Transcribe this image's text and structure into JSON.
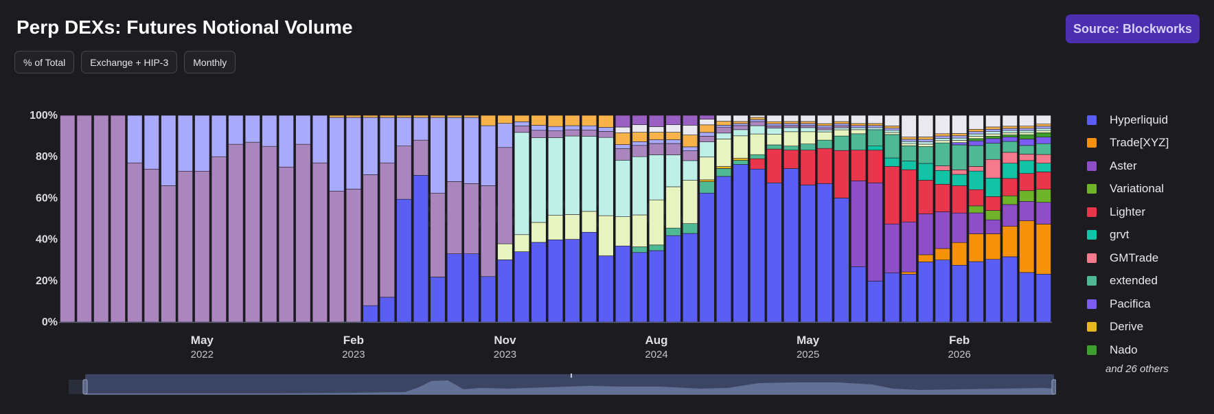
{
  "header": {
    "title": "Perp DEXs: Futures Notional Volume",
    "source_label": "Source: Blockworks"
  },
  "filters": {
    "mode": "% of Total",
    "scope": "Exchange + HIP-3",
    "period": "Monthly"
  },
  "watermark": "Blockworks",
  "legend": {
    "more_label": "and 26 others"
  },
  "chart_data": {
    "type": "bar",
    "stacked": true,
    "normalized": true,
    "title": "Perp DEXs: Futures Notional Volume",
    "y_unit": "% of total",
    "ylim": [
      0,
      100
    ],
    "y_ticks": [
      "0%",
      "20%",
      "40%",
      "60%",
      "80%",
      "100%"
    ],
    "grid": false,
    "legend_position": "right",
    "x_ticks": [
      {
        "month": "May",
        "year": "2022",
        "index": 8
      },
      {
        "month": "Feb",
        "year": "2023",
        "index": 17
      },
      {
        "month": "Nov",
        "year": "2023",
        "index": 26
      },
      {
        "month": "Aug",
        "year": "2024",
        "index": 35
      },
      {
        "month": "May",
        "year": "2025",
        "index": 44
      },
      {
        "month": "Feb",
        "year": "2026",
        "index": 53
      }
    ],
    "series": [
      {
        "name": "Hyperliquid",
        "color": "#5b5ef5",
        "values": [
          0,
          0,
          0,
          0,
          0,
          0,
          0,
          0,
          0,
          0,
          0,
          0,
          0,
          0,
          0,
          0,
          0,
          0,
          8,
          12,
          60,
          71,
          22,
          33,
          33,
          22,
          31,
          33,
          32,
          37,
          40,
          43,
          33,
          39,
          37,
          38,
          46,
          45,
          68,
          74,
          77,
          74,
          66,
          75,
          67,
          67,
          60,
          27,
          20,
          23,
          22,
          25,
          27,
          25,
          26,
          27,
          30,
          23,
          22
        ]
      },
      {
        "name": "Trade[XYZ]",
        "color": "#f5920a",
        "values": [
          0,
          0,
          0,
          0,
          0,
          0,
          0,
          0,
          0,
          0,
          0,
          0,
          0,
          0,
          0,
          0,
          0,
          0,
          0,
          0,
          0,
          0,
          0,
          0,
          0,
          0,
          0,
          0,
          0,
          0,
          0,
          0,
          0,
          0,
          0,
          0,
          0,
          0,
          0,
          0,
          0,
          0,
          0,
          0,
          0,
          0,
          0,
          0,
          0,
          0,
          1,
          3,
          5,
          10,
          12,
          11,
          14,
          24,
          23
        ]
      },
      {
        "name": "Aster",
        "color": "#8e4ec8",
        "values": [
          0,
          0,
          0,
          0,
          0,
          0,
          0,
          0,
          0,
          0,
          0,
          0,
          0,
          0,
          0,
          0,
          0,
          0,
          0,
          0,
          0,
          0,
          0,
          0,
          0,
          0,
          0,
          0,
          0,
          0,
          0,
          0,
          0,
          0,
          0,
          0,
          0,
          0,
          0,
          0,
          0,
          0,
          0,
          0,
          0,
          0,
          0,
          42,
          48,
          23,
          23,
          17,
          16,
          13,
          9,
          6,
          10,
          9,
          10
        ]
      },
      {
        "name": "Variational",
        "color": "#6fb32a",
        "values": [
          0,
          0,
          0,
          0,
          0,
          0,
          0,
          0,
          0,
          0,
          0,
          0,
          0,
          0,
          0,
          0,
          0,
          0,
          0,
          0,
          0,
          0,
          0,
          0,
          0,
          0,
          0,
          0,
          0,
          0,
          0,
          0,
          0,
          0,
          0,
          0,
          0,
          0,
          0,
          0,
          0,
          0,
          0,
          0,
          0,
          0,
          0,
          0,
          0,
          0,
          0,
          0,
          0,
          0,
          3,
          4,
          4,
          5,
          6
        ]
      },
      {
        "name": "Lighter",
        "color": "#e8364c",
        "values": [
          0,
          0,
          0,
          0,
          0,
          0,
          0,
          0,
          0,
          0,
          0,
          0,
          0,
          0,
          0,
          0,
          0,
          0,
          0,
          0,
          0,
          0,
          0,
          0,
          0,
          0,
          0,
          0,
          0,
          0,
          0,
          0,
          0,
          0,
          0,
          0,
          0,
          0,
          0,
          0,
          0,
          5,
          16,
          9,
          17,
          17,
          23,
          15,
          16,
          27,
          24,
          14,
          12,
          12,
          7,
          6,
          8,
          8,
          8
        ]
      },
      {
        "name": "grvt",
        "color": "#12c3a6",
        "values": [
          0,
          0,
          0,
          0,
          0,
          0,
          0,
          0,
          0,
          0,
          0,
          0,
          0,
          0,
          0,
          0,
          0,
          0,
          0,
          0,
          0,
          0,
          0,
          0,
          0,
          0,
          0,
          0,
          0,
          0,
          0,
          0,
          0,
          0,
          0,
          0,
          0,
          0,
          0,
          0,
          0,
          0,
          0,
          0,
          0,
          0,
          0,
          0,
          2,
          4,
          4,
          7,
          6,
          5,
          8,
          8,
          7,
          6,
          4
        ]
      },
      {
        "name": "GMTrade",
        "color": "#f47a8c",
        "values": [
          0,
          0,
          0,
          0,
          0,
          0,
          0,
          0,
          0,
          0,
          0,
          0,
          0,
          0,
          0,
          0,
          0,
          0,
          0,
          0,
          0,
          0,
          0,
          0,
          0,
          0,
          0,
          0,
          0,
          0,
          0,
          0,
          0,
          0,
          0,
          0,
          0,
          0,
          0,
          0,
          0,
          0,
          0,
          0,
          0,
          0,
          0,
          0,
          0,
          0,
          0,
          0,
          2,
          2,
          2,
          8,
          5,
          3,
          4
        ]
      },
      {
        "name": "extended",
        "color": "#4fb894",
        "values": [
          0,
          0,
          0,
          0,
          0,
          0,
          0,
          0,
          0,
          0,
          0,
          0,
          0,
          0,
          0,
          0,
          0,
          0,
          0,
          0,
          0,
          0,
          0,
          0,
          0,
          0,
          0,
          0,
          0,
          0,
          0,
          0,
          0,
          0,
          3,
          3,
          4,
          5,
          6,
          4,
          2,
          2,
          2,
          2,
          3,
          4,
          7,
          8,
          8,
          11,
          7,
          7,
          10,
          11,
          9,
          7,
          5,
          4,
          5
        ]
      },
      {
        "name": "Pacifica",
        "color": "#7b5cf0",
        "values": [
          0,
          0,
          0,
          0,
          0,
          0,
          0,
          0,
          0,
          0,
          0,
          0,
          0,
          0,
          0,
          0,
          0,
          0,
          0,
          0,
          0,
          0,
          0,
          0,
          0,
          0,
          0,
          0,
          0,
          0,
          0,
          0,
          0,
          0,
          0,
          0,
          0,
          0,
          0,
          0,
          0,
          0,
          0,
          0,
          0,
          0,
          0,
          0,
          0,
          0,
          0,
          0,
          0,
          1,
          2,
          2,
          2,
          3,
          3
        ]
      },
      {
        "name": "Derive",
        "color": "#e6b820",
        "values": [
          0,
          0,
          0,
          0,
          0,
          0,
          0,
          0,
          0,
          0,
          0,
          0,
          0,
          0,
          0,
          0,
          0,
          0,
          0,
          0,
          0,
          0,
          0,
          0,
          0,
          0,
          0,
          0,
          0,
          0,
          0,
          0,
          0,
          0,
          0,
          0,
          0,
          0,
          1,
          1,
          1,
          0,
          0,
          0,
          0,
          0,
          0,
          0,
          0,
          0,
          0,
          0,
          0,
          0,
          0,
          0,
          0,
          0,
          0
        ]
      },
      {
        "name": "Nado",
        "color": "#3d9e2e",
        "values": [
          0,
          0,
          0,
          0,
          0,
          0,
          0,
          0,
          0,
          0,
          0,
          0,
          0,
          0,
          0,
          0,
          0,
          0,
          0,
          0,
          0,
          0,
          0,
          0,
          0,
          0,
          0,
          0,
          0,
          0,
          0,
          0,
          0,
          0,
          0,
          0,
          0,
          0,
          0,
          0,
          0,
          0,
          0,
          0,
          0,
          0,
          0,
          0,
          0,
          0,
          0,
          0,
          0,
          0,
          1,
          1,
          1,
          2,
          2
        ]
      },
      {
        "name": "",
        "color": "#e8f4bf",
        "values": [
          0,
          0,
          0,
          0,
          0,
          0,
          0,
          0,
          0,
          0,
          0,
          0,
          0,
          0,
          0,
          0,
          0,
          0,
          0,
          0,
          0,
          0,
          0,
          0,
          0,
          0,
          8,
          8,
          8,
          11,
          12,
          10,
          20,
          15,
          17,
          24,
          22,
          22,
          12,
          14,
          11,
          10,
          5,
          7,
          6,
          4,
          3,
          2,
          0,
          1,
          1,
          1,
          1,
          1,
          1,
          1,
          1,
          1,
          1
        ]
      },
      {
        "name": "",
        "color": "#bff0e8",
        "values": [
          0,
          0,
          0,
          0,
          0,
          0,
          0,
          0,
          0,
          0,
          0,
          0,
          0,
          0,
          0,
          0,
          0,
          0,
          0,
          0,
          0,
          0,
          0,
          0,
          0,
          0,
          0,
          48,
          34,
          35,
          38,
          36,
          39,
          29,
          31,
          24,
          17,
          10,
          8,
          3,
          3,
          4,
          3,
          2,
          2,
          1,
          1,
          1,
          1,
          1,
          1,
          1,
          1,
          1,
          1,
          1,
          1,
          1,
          1
        ]
      },
      {
        "name": "",
        "color": "#ab85bd",
        "values": [
          100,
          100,
          100,
          100,
          77,
          74,
          66,
          73,
          73,
          80,
          86,
          87,
          85,
          75,
          86,
          77,
          64,
          65,
          64,
          65,
          26,
          17,
          41,
          35,
          34,
          44,
          48,
          3,
          3,
          3,
          3,
          3,
          3,
          6,
          6,
          6,
          6,
          5,
          3,
          3,
          2,
          2,
          1,
          1,
          1,
          1,
          1,
          0,
          0,
          0,
          0,
          0,
          0,
          0,
          0,
          0,
          0,
          0,
          0
        ]
      },
      {
        "name": "",
        "color": "#a9aafc",
        "values": [
          0,
          0,
          0,
          0,
          23,
          26,
          34,
          27,
          27,
          20,
          14,
          13,
          15,
          25,
          14,
          23,
          36,
          35,
          28,
          22,
          14,
          11,
          37,
          31,
          32,
          29,
          12,
          2,
          2,
          2,
          2,
          2,
          2,
          2,
          2,
          2,
          2,
          2,
          2,
          1,
          1,
          1,
          1,
          1,
          1,
          1,
          1,
          1,
          1,
          1,
          1,
          1,
          1,
          1,
          1,
          1,
          1,
          1,
          1
        ]
      },
      {
        "name": "",
        "color": "#f7b24a",
        "values": [
          0,
          0,
          0,
          0,
          0,
          0,
          0,
          0,
          0,
          0,
          0,
          0,
          0,
          0,
          0,
          0,
          1,
          1,
          1,
          1,
          1,
          1,
          1,
          1,
          1,
          5,
          4,
          3,
          4,
          5,
          5,
          5,
          6,
          6,
          5,
          4,
          4,
          6,
          4,
          2,
          1,
          1,
          1,
          1,
          1,
          1,
          1,
          1,
          1,
          1,
          1,
          1,
          1,
          1,
          1,
          1,
          1,
          1,
          1
        ]
      },
      {
        "name": "",
        "color": "#e9e9ef",
        "values": [
          0,
          0,
          0,
          0,
          0,
          0,
          0,
          0,
          0,
          0,
          0,
          0,
          0,
          0,
          0,
          0,
          0,
          0,
          0,
          0,
          0,
          0,
          0,
          0,
          0,
          0,
          0,
          0,
          0,
          0,
          0,
          0,
          0,
          3,
          4,
          3,
          4,
          5,
          3,
          3,
          3,
          1,
          3,
          3,
          3,
          4,
          3,
          4,
          4,
          5,
          10,
          9,
          8,
          8,
          6,
          5,
          5,
          5,
          4
        ]
      },
      {
        "name": "",
        "color": "#9a5fc2",
        "values": [
          0,
          0,
          0,
          0,
          0,
          0,
          0,
          0,
          0,
          0,
          0,
          0,
          0,
          0,
          0,
          0,
          0,
          0,
          0,
          0,
          0,
          0,
          0,
          0,
          0,
          0,
          0,
          0,
          0,
          0,
          0,
          0,
          0,
          6,
          5,
          6,
          5,
          5,
          2,
          0,
          0,
          0,
          0,
          0,
          0,
          0,
          0,
          0,
          0,
          0,
          0,
          0,
          0,
          0,
          0,
          0,
          0,
          0,
          0
        ]
      },
      {
        "name": "",
        "color": "#35a88a",
        "values": [
          0,
          0,
          0,
          0,
          0,
          0,
          0,
          0,
          0,
          0,
          0,
          0,
          0,
          0,
          0,
          0,
          0,
          0,
          0,
          0,
          0,
          0,
          0,
          0,
          0,
          0,
          0,
          0,
          0,
          0,
          0,
          0,
          0,
          0,
          0,
          0,
          0,
          0,
          0,
          0,
          0,
          0,
          0,
          0,
          0,
          0,
          0,
          0,
          0,
          0,
          0,
          0,
          0,
          0,
          0,
          0,
          0,
          0,
          0
        ]
      }
    ]
  }
}
